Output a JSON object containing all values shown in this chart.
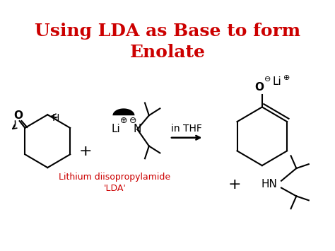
{
  "title_line1": "Using LDA as Base to form",
  "title_line2": "Enolate",
  "title_color": "#cc0000",
  "title_fontsize": 18,
  "bg_color": "#ffffff",
  "lda_label_color": "#cc0000",
  "lda_label_line1": "Lithium diisopropylamide",
  "lda_label_line2": "'LDA'",
  "inthf_label": "in THF"
}
